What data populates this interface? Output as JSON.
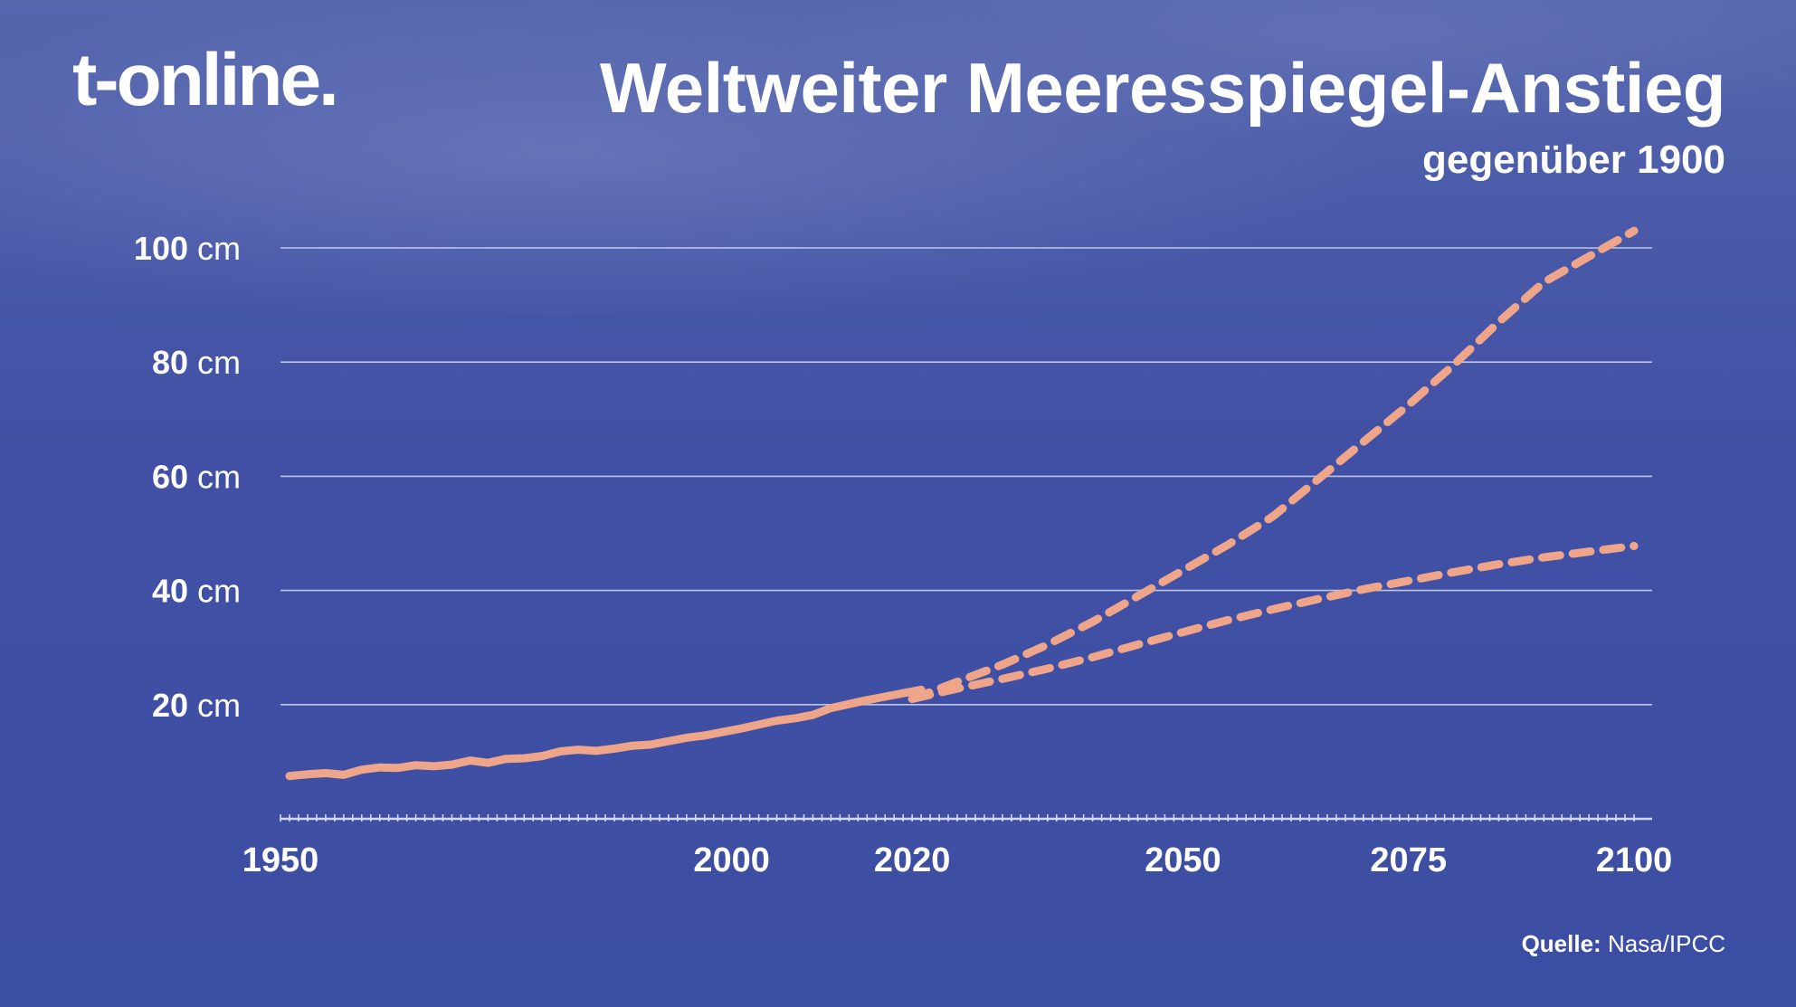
{
  "header": {
    "logo": "t-online.",
    "title": "Weltweiter Meeresspiegel-Anstieg",
    "subtitle": "gegenüber 1900"
  },
  "footer": {
    "source_label": "Quelle:",
    "source_value": "Nasa/IPCC"
  },
  "colors": {
    "line": "#eea58a",
    "grid": "#d4d9f0",
    "text": "#ffffff"
  },
  "chart_data": {
    "type": "line",
    "title": "Weltweiter Meeresspiegel-Anstieg",
    "subtitle": "gegenüber 1900",
    "xlim": [
      1950,
      2102
    ],
    "ylim": [
      0,
      100
    ],
    "y_unit": "cm",
    "y_ticks": [
      {
        "value": 20,
        "num": "20",
        "unit": "cm"
      },
      {
        "value": 40,
        "num": "40",
        "unit": "cm"
      },
      {
        "value": 60,
        "num": "60",
        "unit": "cm"
      },
      {
        "value": 80,
        "num": "80",
        "unit": "cm"
      },
      {
        "value": 100,
        "num": "100",
        "unit": "cm"
      }
    ],
    "x_ticks": [
      {
        "value": 1950,
        "label": "1950"
      },
      {
        "value": 2000,
        "label": "2000"
      },
      {
        "value": 2020,
        "label": "2020"
      },
      {
        "value": 2050,
        "label": "2050"
      },
      {
        "value": 2075,
        "label": "2075"
      },
      {
        "value": 2100,
        "label": "2100"
      }
    ],
    "grid": true,
    "legend": "none",
    "series": [
      {
        "style": "solid",
        "x": [
          1951,
          1953,
          1955,
          1957,
          1959,
          1961,
          1963,
          1965,
          1967,
          1969,
          1971,
          1973,
          1975,
          1977,
          1979,
          1981,
          1983,
          1985,
          1987,
          1989,
          1991,
          1993,
          1995,
          1997,
          1999,
          2001,
          2003,
          2005,
          2007,
          2009,
          2011,
          2013,
          2015,
          2017,
          2019,
          2021
        ],
        "y": [
          7.5,
          7.8,
          8.0,
          7.7,
          8.6,
          9.0,
          8.9,
          9.4,
          9.2,
          9.5,
          10.2,
          9.8,
          10.5,
          10.6,
          11.0,
          11.8,
          12.1,
          11.9,
          12.3,
          12.8,
          13.0,
          13.6,
          14.2,
          14.6,
          15.2,
          15.8,
          16.5,
          17.2,
          17.6,
          18.2,
          19.4,
          20.1,
          20.8,
          21.4,
          22.0,
          22.6
        ]
      },
      {
        "style": "dashed",
        "x": [
          2020,
          2025,
          2030,
          2035,
          2040,
          2045,
          2050,
          2055,
          2060,
          2065,
          2070,
          2075,
          2080,
          2085,
          2090,
          2095,
          2100
        ],
        "y": [
          21.0,
          24.0,
          27.0,
          30.5,
          34.5,
          39.0,
          43.5,
          48.0,
          53.0,
          59.5,
          66.0,
          72.5,
          79.5,
          87.0,
          94.0,
          98.5,
          103.0
        ]
      },
      {
        "style": "dashed",
        "x": [
          2020,
          2025,
          2030,
          2035,
          2040,
          2045,
          2050,
          2055,
          2060,
          2065,
          2070,
          2075,
          2080,
          2085,
          2090,
          2095,
          2100
        ],
        "y": [
          21.0,
          22.8,
          24.5,
          26.3,
          28.3,
          30.5,
          32.7,
          34.8,
          36.7,
          38.5,
          40.2,
          41.7,
          43.2,
          44.6,
          45.8,
          46.8,
          47.8
        ]
      }
    ]
  }
}
